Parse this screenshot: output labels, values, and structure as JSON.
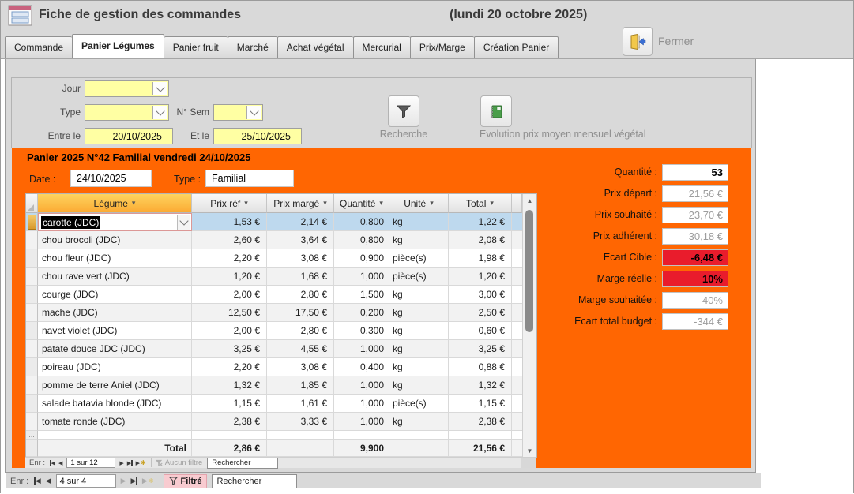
{
  "window": {
    "title": "Fiche de gestion des commandes",
    "date_note": "(lundi 20 octobre 2025)"
  },
  "tabs": [
    {
      "label": "Commande",
      "active": false
    },
    {
      "label": "Panier Légumes",
      "active": true
    },
    {
      "label": "Panier fruit",
      "active": false
    },
    {
      "label": "Marché",
      "active": false
    },
    {
      "label": "Achat végétal",
      "active": false
    },
    {
      "label": "Mercurial",
      "active": false
    },
    {
      "label": "Prix/Marge",
      "active": false
    },
    {
      "label": "Création Panier",
      "active": false
    }
  ],
  "close_button": {
    "label": "Fermer"
  },
  "filters": {
    "jour_label": "Jour",
    "type_label": "Type",
    "nsem_label": "N° Sem",
    "entre_label": "Entre le",
    "entre_value": "20/10/2025",
    "et_label": "Et le",
    "et_value": "25/10/2025",
    "recherche_label": "Recherche",
    "evolution_label": "Evolution prix moyen mensuel végétal"
  },
  "panier": {
    "title": "Panier 2025 N°42 Familial vendredi 24/10/2025",
    "date_label": "Date :",
    "date_value": "24/10/2025",
    "type_label": "Type :",
    "type_value": "Familial",
    "table": {
      "columns": [
        "Légume",
        "Prix réf",
        "Prix margé",
        "Quantité",
        "Unité",
        "Total"
      ],
      "rows": [
        {
          "legume": "carotte (JDC)",
          "prix_ref": "1,53 €",
          "prix_marge": "2,14 €",
          "quantite": "0,800",
          "unite": "kg",
          "total": "1,22 €",
          "selected": true
        },
        {
          "legume": "chou brocoli (JDC)",
          "prix_ref": "2,60 €",
          "prix_marge": "3,64 €",
          "quantite": "0,800",
          "unite": "kg",
          "total": "2,08 €"
        },
        {
          "legume": "chou fleur (JDC)",
          "prix_ref": "2,20 €",
          "prix_marge": "3,08 €",
          "quantite": "0,900",
          "unite": "pièce(s)",
          "total": "1,98 €"
        },
        {
          "legume": "chou rave vert (JDC)",
          "prix_ref": "1,20 €",
          "prix_marge": "1,68 €",
          "quantite": "1,000",
          "unite": "pièce(s)",
          "total": "1,20 €"
        },
        {
          "legume": "courge (JDC)",
          "prix_ref": "2,00 €",
          "prix_marge": "2,80 €",
          "quantite": "1,500",
          "unite": "kg",
          "total": "3,00 €"
        },
        {
          "legume": "mache (JDC)",
          "prix_ref": "12,50 €",
          "prix_marge": "17,50 €",
          "quantite": "0,200",
          "unite": "kg",
          "total": "2,50 €"
        },
        {
          "legume": "navet violet (JDC)",
          "prix_ref": "2,00 €",
          "prix_marge": "2,80 €",
          "quantite": "0,300",
          "unite": "kg",
          "total": "0,60 €"
        },
        {
          "legume": "patate douce JDC (JDC)",
          "prix_ref": "3,25 €",
          "prix_marge": "4,55 €",
          "quantite": "1,000",
          "unite": "kg",
          "total": "3,25 €"
        },
        {
          "legume": "poireau (JDC)",
          "prix_ref": "2,20 €",
          "prix_marge": "3,08 €",
          "quantite": "0,400",
          "unite": "kg",
          "total": "0,88 €"
        },
        {
          "legume": "pomme de terre Aniel (JDC)",
          "prix_ref": "1,32 €",
          "prix_marge": "1,85 €",
          "quantite": "1,000",
          "unite": "kg",
          "total": "1,32 €"
        },
        {
          "legume": "salade batavia blonde (JDC)",
          "prix_ref": "1,15 €",
          "prix_marge": "1,61 €",
          "quantite": "1,000",
          "unite": "pièce(s)",
          "total": "1,15 €"
        },
        {
          "legume": "tomate ronde (JDC)",
          "prix_ref": "2,38 €",
          "prix_marge": "3,33 €",
          "quantite": "1,000",
          "unite": "kg",
          "total": "2,38 €"
        }
      ],
      "total_row": {
        "label": "Total",
        "prix_ref": "2,86 €",
        "quantite": "9,900",
        "total": "21,56 €"
      }
    },
    "summary": [
      {
        "label": "Quantité :",
        "value": "53",
        "variant": "plain"
      },
      {
        "label": "Prix départ :",
        "value": "21,56 €",
        "variant": "muted"
      },
      {
        "label": "Prix souhaité :",
        "value": "23,70 €",
        "variant": "muted"
      },
      {
        "label": "Prix adhérent :",
        "value": "30,18 €",
        "variant": "muted"
      },
      {
        "label": "Ecart Cible :",
        "value": "-6,48 €",
        "variant": "red"
      },
      {
        "label": "Marge réelle :",
        "value": "10%",
        "variant": "red"
      },
      {
        "label": "Marge souhaitée :",
        "value": "40%",
        "variant": "muted"
      },
      {
        "label": "Ecart total budget :",
        "value": "-344 €",
        "variant": "muted"
      }
    ],
    "nav": {
      "enr_label": "Enr :",
      "position": "1 sur 12",
      "filter_label": "Aucun filtre",
      "search_label": "Rechercher"
    }
  },
  "main_nav": {
    "enr_label": "Enr :",
    "position": "4 sur 4",
    "filter_label": "Filtré",
    "search_label": "Rechercher"
  },
  "icons": {
    "sort_arrow": "▾",
    "nav_prev": "◀",
    "nav_next": "▶",
    "new_star": "✱",
    "dots": "...",
    "scroll_up": "▲",
    "scroll_down": "▼"
  },
  "colors": {
    "panel_orange": "#ff6602",
    "alert_red": "#e91c2c",
    "filter_yellow": "#ffffa3",
    "selected_row_blue": "#bed9ee"
  }
}
